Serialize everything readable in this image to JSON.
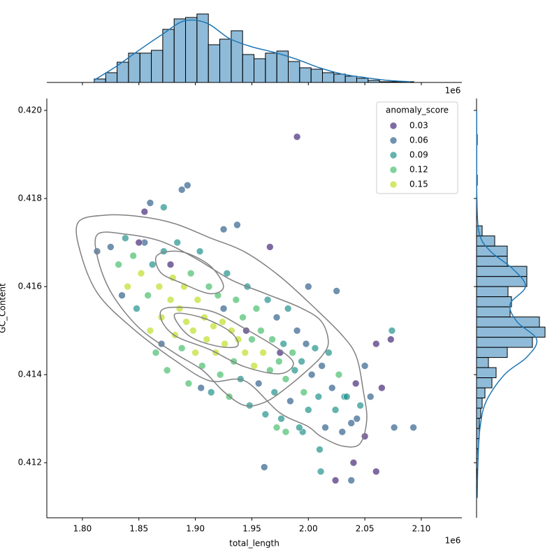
{
  "chart_data": {
    "type": "jointplot",
    "x_label": "total_length",
    "y_label": "GC_Content",
    "x_offset_text": "1e6",
    "xlim": [
      1.7685,
      2.1359
    ],
    "ylim": [
      0.41075,
      0.42027
    ],
    "xticks": [
      {
        "value": 1.8,
        "label": "1.80"
      },
      1.85,
      {
        "value": 1.9,
        "label": "1.90"
      },
      1.95,
      {
        "value": 2.0,
        "label": "2.00"
      },
      2.05,
      {
        "value": 2.1,
        "label": "2.10"
      }
    ],
    "yticks": [
      0.412,
      0.414,
      0.416,
      0.418,
      {
        "value": 0.42,
        "label": "0.420"
      }
    ],
    "scatter": {
      "x": [
        1.99,
        1.893,
        1.888,
        1.86,
        1.855,
        1.872,
        1.961,
        2.011,
        2.024,
        2.038,
        2.04,
        2.06,
        2.093,
        2.076,
        2.073,
        2.074,
        2.065,
        1.966,
        1.925,
        1.937,
        2.0,
        2.025,
        1.813,
        1.972,
        1.98,
        1.995,
        2.01,
        2.05,
        2.043,
        2.032,
        1.825,
        1.832,
        1.838,
        1.84,
        1.845,
        1.848,
        1.852,
        1.855,
        1.858,
        1.86,
        1.862,
        1.865,
        1.868,
        1.87,
        1.872,
        1.875,
        1.878,
        1.88,
        1.882,
        1.884,
        1.886,
        1.888,
        1.89,
        1.892,
        1.894,
        1.896,
        1.898,
        1.9,
        1.902,
        1.904,
        1.906,
        1.908,
        1.91,
        1.912,
        1.914,
        1.916,
        1.918,
        1.92,
        1.922,
        1.924,
        1.926,
        1.928,
        1.93,
        1.932,
        1.934,
        1.936,
        1.938,
        1.94,
        1.942,
        1.944,
        1.946,
        1.948,
        1.95,
        1.952,
        1.954,
        1.956,
        1.958,
        1.96,
        1.962,
        1.964,
        1.966,
        1.968,
        1.97,
        1.972,
        1.974,
        1.976,
        1.978,
        1.98,
        1.982,
        1.984,
        1.986,
        1.988,
        1.99,
        1.992,
        1.994,
        1.996,
        1.998,
        2.0,
        2.003,
        2.006,
        2.009,
        2.012,
        2.015,
        2.018,
        2.021,
        2.024,
        2.027,
        2.03,
        2.034,
        2.038,
        2.042,
        2.046,
        2.05,
        2.055,
        2.06,
        1.835,
        1.85,
        1.878,
        1.905,
        1.945,
        1.975,
        1.87,
        1.925
      ],
      "y": [
        0.4194,
        0.4183,
        0.4182,
        0.4179,
        0.4177,
        0.4178,
        0.4119,
        0.4118,
        0.4116,
        0.4116,
        0.412,
        0.4118,
        0.4128,
        0.4128,
        0.4148,
        0.415,
        0.4137,
        0.4169,
        0.4173,
        0.4174,
        0.416,
        0.4159,
        0.4168,
        0.4128,
        0.4127,
        0.4127,
        0.4123,
        0.4126,
        0.413,
        0.4135,
        0.4169,
        0.4165,
        0.4171,
        0.416,
        0.4167,
        0.4155,
        0.4163,
        0.417,
        0.4158,
        0.415,
        0.4165,
        0.4145,
        0.416,
        0.4153,
        0.4168,
        0.4141,
        0.4157,
        0.4162,
        0.4149,
        0.417,
        0.4155,
        0.4146,
        0.416,
        0.4152,
        0.4138,
        0.4163,
        0.415,
        0.4145,
        0.4157,
        0.4168,
        0.4142,
        0.4153,
        0.4148,
        0.416,
        0.4136,
        0.4151,
        0.4145,
        0.4158,
        0.414,
        0.4152,
        0.4147,
        0.4163,
        0.4135,
        0.415,
        0.4143,
        0.4157,
        0.4148,
        0.4139,
        0.4153,
        0.4145,
        0.416,
        0.4133,
        0.4148,
        0.4142,
        0.4155,
        0.4138,
        0.415,
        0.4145,
        0.4131,
        0.4157,
        0.4141,
        0.4148,
        0.4136,
        0.4153,
        0.4143,
        0.413,
        0.4147,
        0.4139,
        0.4155,
        0.4134,
        0.4145,
        0.4141,
        0.415,
        0.4128,
        0.4143,
        0.4136,
        0.4147,
        0.4132,
        0.414,
        0.4146,
        0.4135,
        0.4142,
        0.4128,
        0.4145,
        0.4137,
        0.4132,
        0.414,
        0.4127,
        0.4135,
        0.4129,
        0.4138,
        0.4133,
        0.4142,
        0.4135,
        0.4147,
        0.4158,
        0.417,
        0.4165,
        0.4137,
        0.415,
        0.4145,
        0.4147,
        0.4155
      ],
      "hue": [
        0.03,
        0.06,
        0.06,
        0.06,
        0.03,
        0.09,
        0.06,
        0.09,
        0.03,
        0.06,
        0.03,
        0.03,
        0.06,
        0.06,
        0.03,
        0.09,
        0.03,
        0.03,
        0.06,
        0.06,
        0.06,
        0.06,
        0.06,
        0.12,
        0.12,
        0.09,
        0.09,
        0.03,
        0.06,
        0.09,
        0.06,
        0.12,
        0.09,
        0.15,
        0.12,
        0.09,
        0.15,
        0.06,
        0.12,
        0.15,
        0.09,
        0.12,
        0.15,
        0.15,
        0.09,
        0.12,
        0.15,
        0.15,
        0.15,
        0.09,
        0.15,
        0.12,
        0.15,
        0.15,
        0.12,
        0.12,
        0.15,
        0.15,
        0.15,
        0.09,
        0.12,
        0.15,
        0.15,
        0.12,
        0.09,
        0.15,
        0.15,
        0.12,
        0.12,
        0.15,
        0.15,
        0.09,
        0.12,
        0.15,
        0.12,
        0.12,
        0.15,
        0.09,
        0.12,
        0.15,
        0.09,
        0.09,
        0.12,
        0.15,
        0.12,
        0.06,
        0.12,
        0.15,
        0.09,
        0.09,
        0.12,
        0.12,
        0.09,
        0.06,
        0.12,
        0.09,
        0.09,
        0.12,
        0.09,
        0.06,
        0.12,
        0.09,
        0.06,
        0.09,
        0.09,
        0.12,
        0.06,
        0.09,
        0.06,
        0.09,
        0.09,
        0.06,
        0.06,
        0.09,
        0.06,
        0.09,
        0.12,
        0.06,
        0.09,
        0.06,
        0.03,
        0.09,
        0.06,
        0.06,
        0.03,
        0.06,
        0.03,
        0.03,
        0.06,
        0.03,
        0.03,
        0.06,
        0.06
      ]
    },
    "colormap": [
      "#440154",
      "#482878",
      "#3e4989",
      "#31688e",
      "#26828e",
      "#1f9e89",
      "#35b779",
      "#6ece58",
      "#b5de2b",
      "#fde725"
    ],
    "hue_norm": [
      0.0115,
      0.165
    ],
    "legend": {
      "title": "anomaly_score",
      "entries": [
        0.03,
        0.06,
        0.09,
        0.12,
        0.15
      ],
      "loc": "upper right"
    },
    "contour_color": "#808080",
    "contours": [
      {
        "x": [
          1.7963,
          1.8198,
          1.8507,
          1.8816,
          1.9126,
          1.9435,
          1.9744,
          2.0054,
          2.0301,
          2.0425,
          2.0487,
          2.0517,
          2.0456,
          2.0301,
          2.0115,
          1.9992,
          1.9744,
          1.9435,
          1.9126,
          1.8816,
          1.8445,
          1.8136,
          1.7981
        ],
        "y": [
          0.41746,
          0.41762,
          0.41759,
          0.41743,
          0.41711,
          0.41679,
          0.41624,
          0.41552,
          0.41489,
          0.41441,
          0.41362,
          0.41298,
          0.41243,
          0.41238,
          0.41259,
          0.41283,
          0.41314,
          0.41386,
          0.41386,
          0.41433,
          0.41505,
          0.41584,
          0.41679
        ]
      },
      {
        "x": [
          1.8136,
          1.8383,
          1.8693,
          1.9002,
          1.9311,
          1.962,
          1.993,
          2.0115,
          2.0177,
          2.0115,
          1.9992,
          1.9806,
          1.962,
          1.9435,
          1.9249,
          1.9064,
          1.8816,
          1.8507,
          1.826,
          1.8136
        ],
        "y": [
          0.41719,
          0.41719,
          0.41703,
          0.41664,
          0.41616,
          0.41584,
          0.41552,
          0.41521,
          0.41473,
          0.41441,
          0.4141,
          0.4137,
          0.41338,
          0.4133,
          0.41362,
          0.4141,
          0.41449,
          0.41505,
          0.41584,
          0.41664
        ]
      },
      {
        "x": [
          1.8662,
          1.8878,
          1.9126,
          1.9249,
          1.9126,
          1.8878,
          1.8693
        ],
        "y": [
          0.41671,
          0.41679,
          0.41648,
          0.416,
          0.41584,
          0.41608,
          0.41632
        ]
      },
      {
        "x": [
          1.8755,
          1.9126,
          1.9435,
          1.9744,
          1.9868,
          1.9744,
          1.9435,
          1.9126,
          1.8816,
          1.8693
        ],
        "y": [
          0.41552,
          0.41545,
          0.41505,
          0.41457,
          0.41425,
          0.41402,
          0.41418,
          0.41457,
          0.41489,
          0.41529
        ]
      },
      {
        "x": [
          1.8816,
          1.9064,
          1.9311,
          1.9373,
          1.9187,
          1.894
        ],
        "y": [
          0.41537,
          0.41529,
          0.41497,
          0.41465,
          0.41465,
          0.41489
        ]
      }
    ],
    "hist_color": "#1f77b4",
    "x_hist": {
      "bins": [
        1.8105,
        1.8206,
        1.8307,
        1.8408,
        1.8509,
        1.861,
        1.8711,
        1.8812,
        1.8913,
        1.9014,
        1.9115,
        1.9216,
        1.9317,
        1.9418,
        1.9519,
        1.962,
        1.9721,
        1.9822,
        1.9923,
        2.0024,
        2.0125,
        2.0226,
        2.0327,
        2.0428,
        2.0529,
        2.063,
        2.0731,
        2.0832,
        2.0933
      ],
      "counts": [
        5,
        14,
        29,
        42,
        42,
        46,
        76,
        91,
        93,
        98,
        54,
        62,
        74,
        40,
        34,
        42,
        45,
        30,
        21,
        19,
        14,
        12,
        9,
        6,
        3,
        1,
        1,
        1
      ],
      "countlim": [
        0,
        100
      ],
      "kde_x": [
        1.81,
        1.83,
        1.85,
        1.87,
        1.89,
        1.91,
        1.93,
        1.95,
        1.97,
        1.99,
        2.01,
        2.03,
        2.05,
        2.07,
        2.09
      ],
      "kde": [
        3,
        23,
        46,
        68,
        88,
        85,
        63,
        51,
        43,
        33,
        21,
        12,
        7,
        3,
        1
      ]
    },
    "y_hist": {
      "bins": [
        0.41163,
        0.41186,
        0.41209,
        0.41232,
        0.41255,
        0.41278,
        0.41301,
        0.41324,
        0.41347,
        0.4137,
        0.41393,
        0.41416,
        0.41439,
        0.41462,
        0.41485,
        0.41508,
        0.41531,
        0.41554,
        0.41577,
        0.416,
        0.41623,
        0.41646,
        0.41669,
        0.41692,
        0.41715,
        0.41738,
        0.41761,
        0.41784,
        0.41807,
        0.4183,
        0.41853,
        0.41876,
        0.41899,
        0.41922,
        0.41945
      ],
      "counts": [
        1,
        2,
        2,
        3,
        4,
        4,
        6,
        8,
        12,
        22,
        28,
        17,
        44,
        80,
        98,
        90,
        48,
        50,
        45,
        72,
        72,
        44,
        44,
        26,
        8,
        0,
        0,
        0,
        0,
        1,
        0,
        0,
        0,
        1
      ],
      "countlim": [
        0,
        100
      ],
      "kde_y": [
        0.4112,
        0.412,
        0.4128,
        0.4134,
        0.414,
        0.4144,
        0.4148,
        0.4152,
        0.4156,
        0.416,
        0.4164,
        0.4168,
        0.4172,
        0.418,
        0.419,
        0.42
      ],
      "kde": [
        1,
        2,
        5,
        14,
        40,
        72,
        86,
        58,
        48,
        70,
        52,
        20,
        4,
        0.5,
        0.3,
        0.2
      ]
    }
  }
}
